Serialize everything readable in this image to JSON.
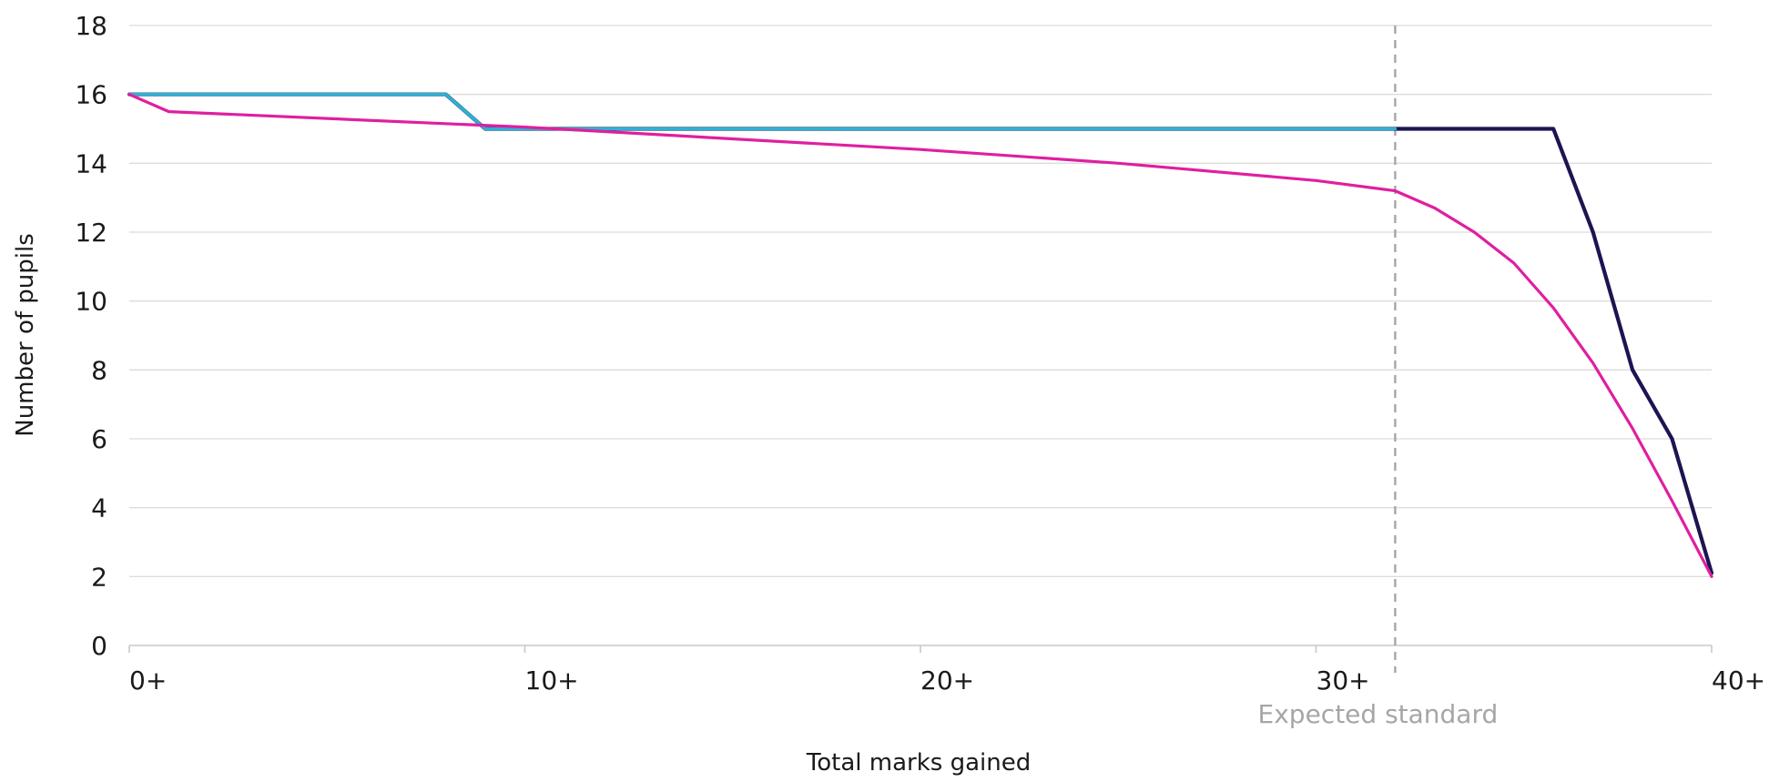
{
  "chart_data": {
    "type": "line",
    "title": "",
    "xlabel": "Total marks gained",
    "ylabel": "Number of pupils",
    "xlim": [
      0,
      40
    ],
    "ylim": [
      0,
      18
    ],
    "x_ticks": [
      0,
      10,
      20,
      30,
      40
    ],
    "x_tick_labels": [
      "0+",
      "10+",
      "20+",
      "30+",
      "40+"
    ],
    "y_ticks": [
      0,
      2,
      4,
      6,
      8,
      10,
      12,
      14,
      16,
      18
    ],
    "y_tick_labels": [
      "0",
      "2",
      "4",
      "6",
      "8",
      "10",
      "12",
      "14",
      "16",
      "18"
    ],
    "grid": "horizontal",
    "legend": "none",
    "series": [
      {
        "color": "#1b1551",
        "x": [
          0,
          8,
          9,
          32,
          36,
          37,
          38,
          39,
          40
        ],
        "values": [
          16,
          16,
          15,
          15,
          15,
          12,
          8,
          6,
          2.1
        ]
      },
      {
        "color": "#2fb0d4",
        "x": [
          0,
          8,
          9,
          32
        ],
        "values": [
          16,
          16,
          15,
          15
        ]
      },
      {
        "color": "#df1fa0",
        "x": [
          0,
          1,
          10,
          20,
          25,
          30,
          32,
          33,
          34,
          35,
          36,
          37,
          38,
          39,
          40
        ],
        "values": [
          16,
          15.5,
          15.05,
          14.4,
          14.0,
          13.5,
          13.2,
          12.7,
          12.0,
          11.1,
          9.8,
          8.2,
          6.3,
          4.2,
          2.0
        ]
      }
    ],
    "annotations": [
      {
        "text": "Expected standard",
        "x": 32,
        "style": "dashed-vertical",
        "color": "#a6a6a6"
      }
    ],
    "colors": {
      "grid": "#dcdcdc",
      "axis": "#c8c8c8",
      "text": "#1a1a1a",
      "annotation": "#a6a6a6"
    }
  }
}
